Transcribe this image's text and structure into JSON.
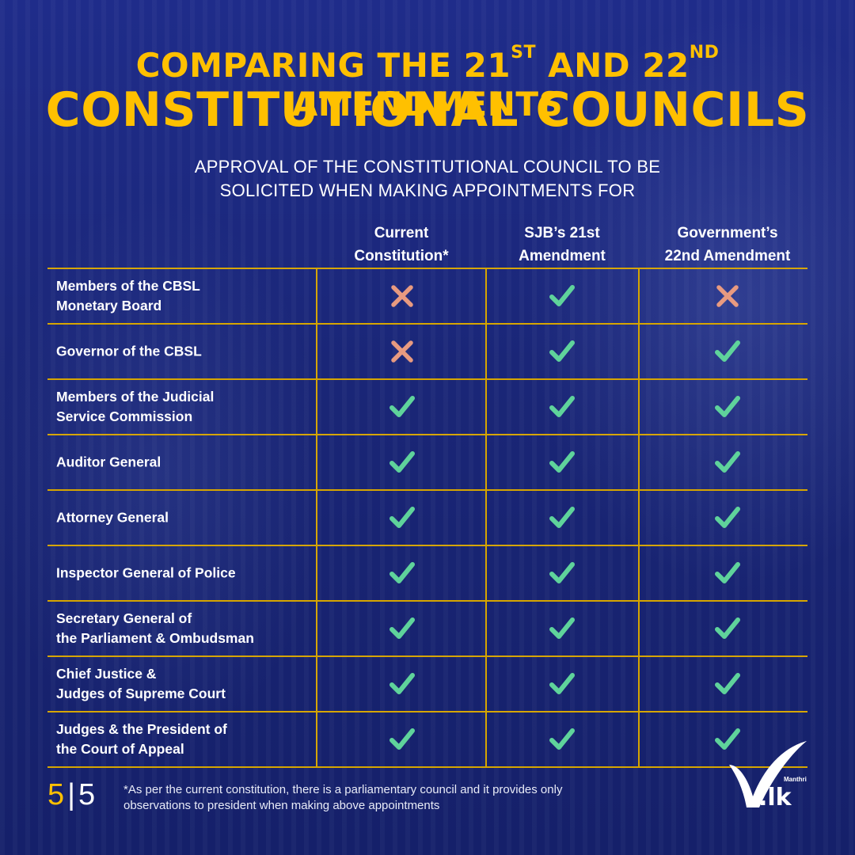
{
  "title": {
    "line1_pre": "Comparing the 21",
    "line1_sup1": "st",
    "line1_mid": " and 22",
    "line1_sup2": "nd",
    "line1_post": " Amendments",
    "line2": "Constitutional Councils"
  },
  "subtitle": {
    "line1": "APPROVAL OF THE CONSTITUTIONAL COUNCIL TO BE",
    "line2": "SOLICITED WHEN MAKING APPOINTMENTS FOR"
  },
  "columns": [
    {
      "line1": "Current",
      "line2": "Constitution*"
    },
    {
      "line1": "SJB’s 21st",
      "line2": "Amendment"
    },
    {
      "line1": "Government’s",
      "line2": "22nd Amendment"
    }
  ],
  "rows": [
    {
      "line1": "Members of the CBSL",
      "line2": "Monetary Board",
      "values": [
        "cross",
        "check",
        "cross"
      ]
    },
    {
      "line1": "Governor of the CBSL",
      "line2": "",
      "values": [
        "cross",
        "check",
        "check"
      ]
    },
    {
      "line1": "Members of the Judicial",
      "line2": "Service Commission",
      "values": [
        "check",
        "check",
        "check"
      ]
    },
    {
      "line1": "Auditor General",
      "line2": "",
      "values": [
        "check",
        "check",
        "check"
      ]
    },
    {
      "line1": "Attorney General",
      "line2": "",
      "values": [
        "check",
        "check",
        "check"
      ]
    },
    {
      "line1": "Inspector General of Police",
      "line2": "",
      "values": [
        "check",
        "check",
        "check"
      ]
    },
    {
      "line1": "Secretary General of",
      "line2": "the Parliament & Ombudsman",
      "values": [
        "check",
        "check",
        "check"
      ]
    },
    {
      "line1": "Chief Justice &",
      "line2": "Judges of Supreme Court",
      "values": [
        "check",
        "check",
        "check"
      ]
    },
    {
      "line1": "Judges & the President of",
      "line2": "the Court of Appeal",
      "values": [
        "check",
        "check",
        "check"
      ]
    }
  ],
  "footer": {
    "page_current": "5",
    "separator": "|",
    "page_total": "5",
    "note_line1": "*As per the current constitution, there is a parliamentary council and it provides only",
    "note_line2": "observations to president when making above appointments"
  },
  "logo": {
    "small_text": "Manthri",
    "domain_text": ".lk"
  },
  "colors": {
    "accent": "#ffc000",
    "check": "#5fd39b",
    "cross": "#e89a80",
    "background": "#1c2880"
  }
}
